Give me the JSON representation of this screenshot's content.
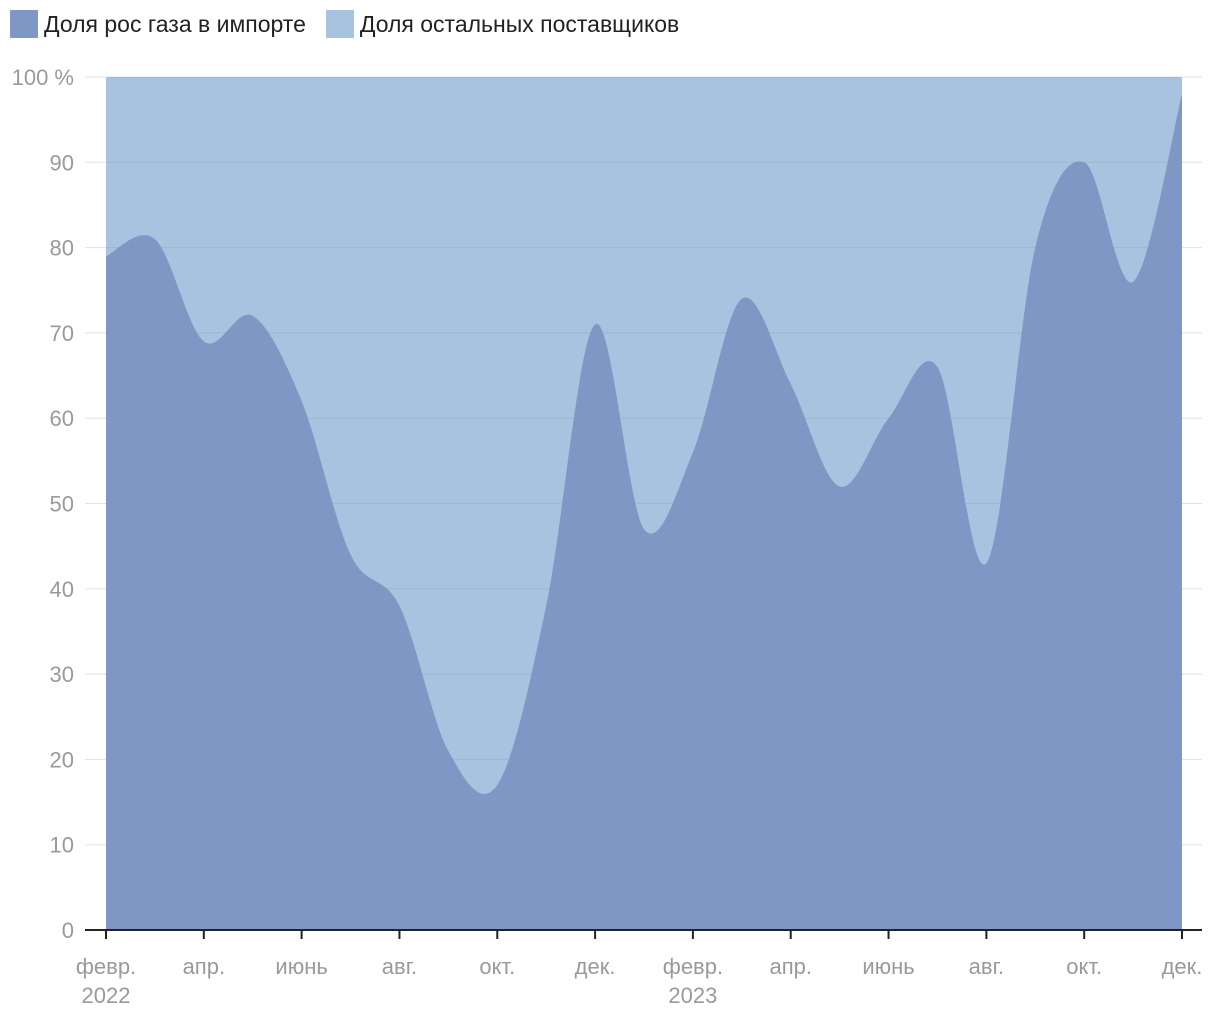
{
  "chart_data": {
    "type": "area",
    "stacked": true,
    "stack_mode": "percent",
    "x": [
      "2022-02",
      "2022-03",
      "2022-04",
      "2022-05",
      "2022-06",
      "2022-07",
      "2022-08",
      "2022-09",
      "2022-10",
      "2022-11",
      "2022-12",
      "2023-01",
      "2023-02",
      "2023-03",
      "2023-04",
      "2023-05",
      "2023-06",
      "2023-07",
      "2023-08",
      "2023-09",
      "2023-10",
      "2023-11",
      "2023-12"
    ],
    "x_tick_labels": [
      {
        "month": "февр.",
        "year": "2022"
      },
      {
        "month": "апр.",
        "year": ""
      },
      {
        "month": "июнь",
        "year": ""
      },
      {
        "month": "авг.",
        "year": ""
      },
      {
        "month": "окт.",
        "year": ""
      },
      {
        "month": "дек.",
        "year": ""
      },
      {
        "month": "февр.",
        "year": "2023"
      },
      {
        "month": "апр.",
        "year": ""
      },
      {
        "month": "июнь",
        "year": ""
      },
      {
        "month": "авг.",
        "year": ""
      },
      {
        "month": "окт.",
        "year": ""
      },
      {
        "month": "дек.",
        "year": ""
      }
    ],
    "y_ticks": [
      "0",
      "10",
      "20",
      "30",
      "40",
      "50",
      "60",
      "70",
      "80",
      "90",
      "100 %"
    ],
    "ylim": [
      0,
      100
    ],
    "grid": true,
    "legend_position": "top-left",
    "series": [
      {
        "name": "Доля рос газа в импорте",
        "color": "#7f97c4",
        "values": [
          79,
          81,
          69,
          72,
          62,
          44,
          38,
          21,
          17,
          38,
          71,
          47,
          56,
          74,
          64,
          52,
          60,
          66,
          43,
          80,
          90,
          76,
          98
        ]
      },
      {
        "name": "Доля остальных поставщиков",
        "color": "#a7c3df",
        "values": [
          21,
          19,
          31,
          28,
          38,
          56,
          62,
          79,
          83,
          62,
          29,
          53,
          44,
          26,
          36,
          48,
          40,
          34,
          57,
          20,
          10,
          24,
          2
        ]
      }
    ]
  }
}
